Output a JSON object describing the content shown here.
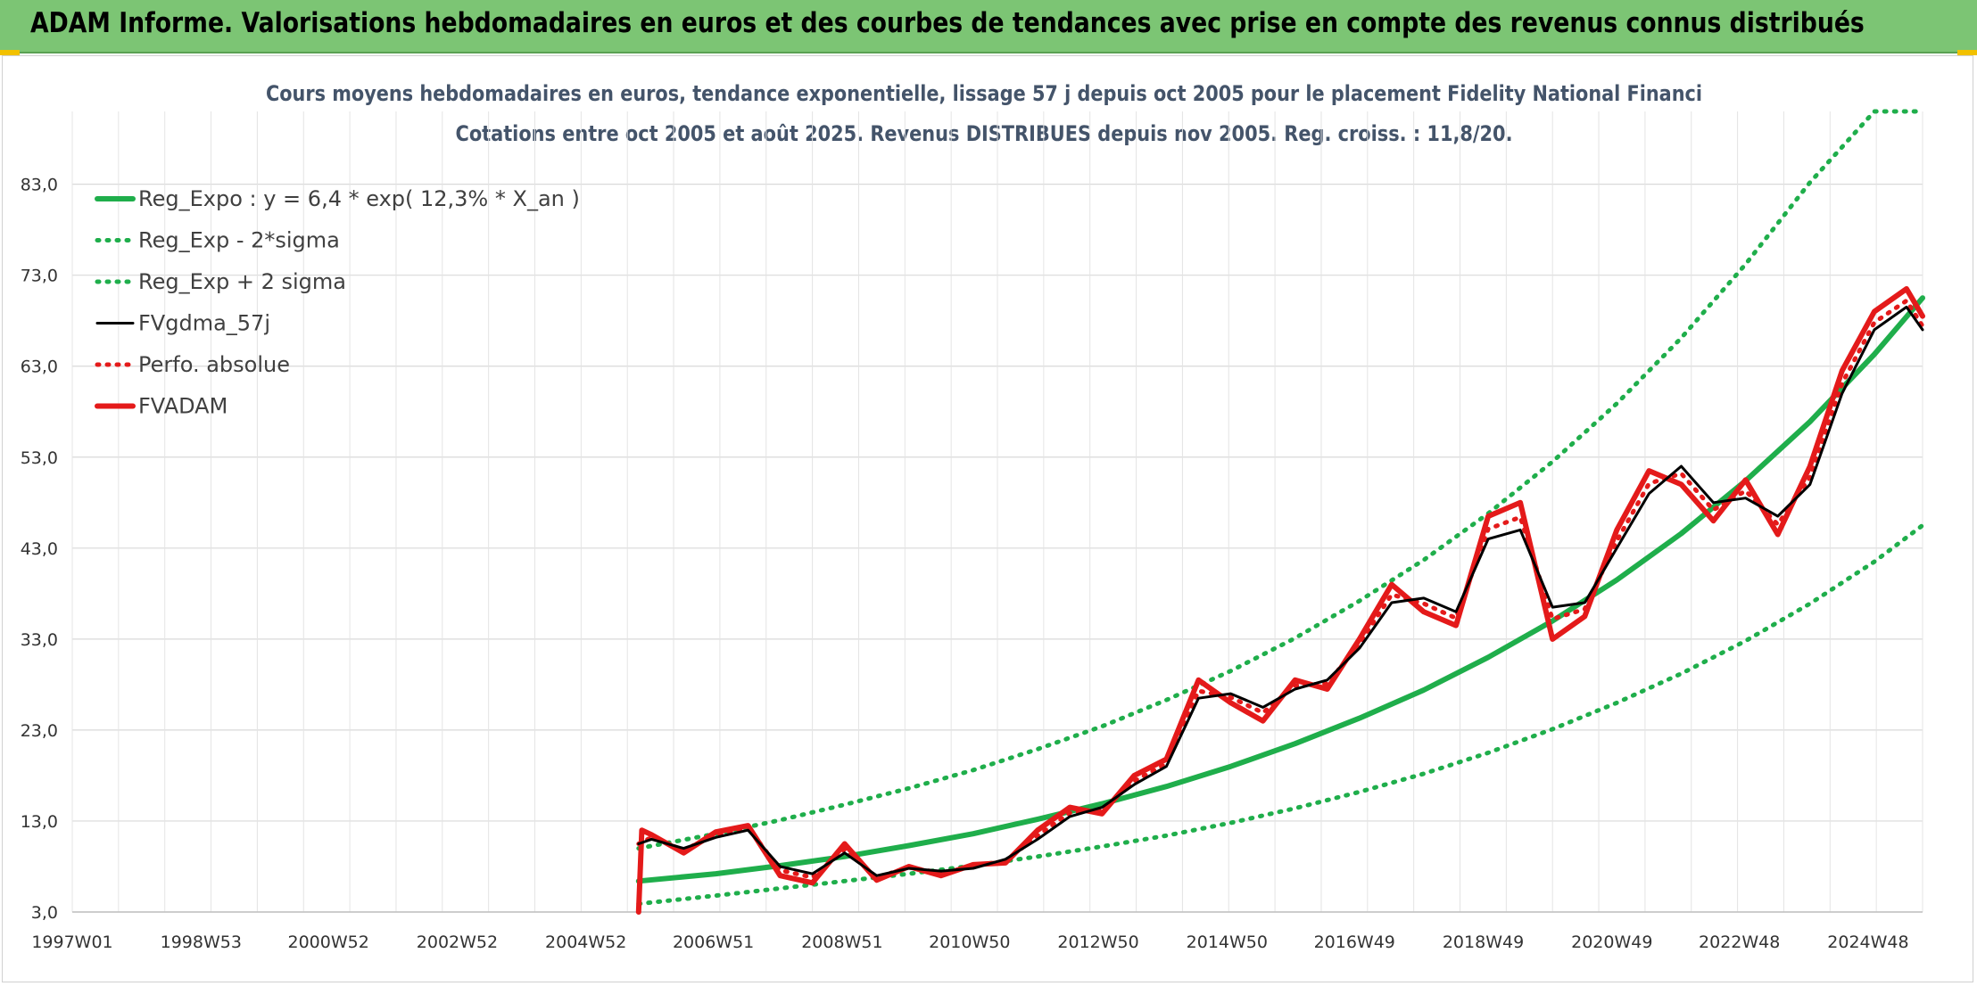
{
  "banner": {
    "title": "ADAM Informe. Valorisations hebdomadaires en euros et des courbes de tendances avec prise en compte des revenus connus distribués",
    "color": "#7cc574"
  },
  "chart_data": {
    "type": "line",
    "title": "Cours moyens hebdomadaires en euros, tendance exponentielle, lissage 57 j depuis oct 2005 pour le placement Fidelity National Financi",
    "subtitle": "Cotations entre oct 2005 et août 2025. Revenus DISTRIBUES depuis nov 2005. Reg. croiss. : 11,8/20.",
    "xlabel": "",
    "ylabel": "",
    "x_range": [
      1997.0,
      2025.75
    ],
    "y_range": [
      3.0,
      91.0
    ],
    "y_ticks": [
      "3,0",
      "13,0",
      "23,0",
      "33,0",
      "43,0",
      "53,0",
      "63,0",
      "73,0",
      "83,0"
    ],
    "x_ticks": [
      "1997W01",
      "1998W53",
      "2000W52",
      "2002W52",
      "2004W52",
      "2006W51",
      "2008W51",
      "2010W50",
      "2012W50",
      "2014W50",
      "2016W49",
      "2018W49",
      "2020W49",
      "2022W48",
      "2024W48"
    ],
    "grid": true,
    "legend_position": "top-left",
    "legend": [
      {
        "label": "Reg_Expo : y = 6,4 * exp( 12,3% *  X_an )",
        "color": "#1fae4b",
        "style": "solid-thick"
      },
      {
        "label": "Reg_Exp - 2*sigma",
        "color": "#1fae4b",
        "style": "dotted"
      },
      {
        "label": "Reg_Exp + 2 sigma",
        "color": "#1fae4b",
        "style": "dotted"
      },
      {
        "label": "FVgdma_57j",
        "color": "#000000",
        "style": "solid"
      },
      {
        "label": "Perfo. absolue",
        "color": "#e41a1a",
        "style": "dotted"
      },
      {
        "label": "FVADAM",
        "color": "#e41a1a",
        "style": "solid-thick"
      }
    ],
    "series": [
      {
        "name": "Reg_Expo : y = 6,4 * exp( 12,3% *  X_an )",
        "color": "#1fae4b",
        "x": [
          2005.8,
          2007,
          2008,
          2009,
          2010,
          2011,
          2012,
          2013,
          2014,
          2015,
          2016,
          2017,
          2018,
          2019,
          2020,
          2021,
          2022,
          2023,
          2024,
          2025,
          2025.75
        ],
        "values": [
          6.4,
          7.2,
          8.1,
          9.1,
          10.3,
          11.6,
          13.2,
          14.9,
          16.8,
          19.0,
          21.5,
          24.3,
          27.4,
          31.0,
          35.0,
          39.5,
          44.6,
          50.4,
          56.9,
          64.3,
          70.5
        ]
      },
      {
        "name": "Reg_Exp - 2*sigma",
        "color": "#1fae4b",
        "x": [
          2005.8,
          2007,
          2008,
          2009,
          2010,
          2011,
          2012,
          2013,
          2014,
          2015,
          2016,
          2017,
          2018,
          2019,
          2020,
          2021,
          2022,
          2023,
          2024,
          2025,
          2025.75
        ],
        "values": [
          3.9,
          4.8,
          5.6,
          6.4,
          7.2,
          8.1,
          9.1,
          10.2,
          11.4,
          12.8,
          14.4,
          16.2,
          18.2,
          20.5,
          23.1,
          26.0,
          29.2,
          32.8,
          36.9,
          41.5,
          45.5
        ]
      },
      {
        "name": "Reg_Exp + 2 sigma",
        "color": "#1fae4b",
        "x": [
          2005.8,
          2007,
          2008,
          2009,
          2010,
          2011,
          2012,
          2013,
          2014,
          2015,
          2016,
          2017,
          2018,
          2019,
          2020,
          2021,
          2022,
          2023,
          2024,
          2025,
          2025.75
        ],
        "values": [
          10.0,
          11.6,
          13.1,
          14.8,
          16.6,
          18.6,
          20.9,
          23.4,
          26.3,
          29.5,
          33.1,
          37.2,
          41.7,
          46.8,
          52.5,
          58.9,
          66.1,
          74.2,
          83.2,
          91.0,
          91.0
        ]
      },
      {
        "name": "FVgdma_57j",
        "color": "#000000",
        "x": [
          2005.8,
          2006.0,
          2006.5,
          2007.0,
          2007.5,
          2008.0,
          2008.5,
          2009.0,
          2009.5,
          2010.0,
          2010.5,
          2011.0,
          2011.5,
          2012.0,
          2012.5,
          2013.0,
          2013.5,
          2014.0,
          2014.5,
          2015.0,
          2015.5,
          2016.0,
          2016.5,
          2017.0,
          2017.5,
          2018.0,
          2018.5,
          2019.0,
          2019.5,
          2020.0,
          2020.5,
          2021.0,
          2021.5,
          2022.0,
          2022.5,
          2023.0,
          2023.5,
          2024.0,
          2024.5,
          2025.0,
          2025.5,
          2025.75
        ],
        "values": [
          10.5,
          11.0,
          10.0,
          11.2,
          12.0,
          8.0,
          7.2,
          9.5,
          7.0,
          7.8,
          7.5,
          7.8,
          8.8,
          11.0,
          13.5,
          14.5,
          17.0,
          19.0,
          26.5,
          27.0,
          25.5,
          27.5,
          28.5,
          32.0,
          37.0,
          37.5,
          36.0,
          44.0,
          45.0,
          36.5,
          37.0,
          43.0,
          49.0,
          52.0,
          48.0,
          48.5,
          46.5,
          50.0,
          60.0,
          67.0,
          69.5,
          67.0
        ]
      },
      {
        "name": "Perfo. absolue",
        "color": "#e41a1a",
        "x": [
          2005.8,
          2006.0,
          2006.5,
          2007.0,
          2007.5,
          2008.0,
          2008.5,
          2009.0,
          2009.5,
          2010.0,
          2010.5,
          2011.0,
          2011.5,
          2012.0,
          2012.5,
          2013.0,
          2013.5,
          2014.0,
          2014.5,
          2015.0,
          2015.5,
          2016.0,
          2016.5,
          2017.0,
          2017.5,
          2018.0,
          2018.5,
          2019.0,
          2019.5,
          2020.0,
          2020.5,
          2021.0,
          2021.5,
          2022.0,
          2022.5,
          2023.0,
          2023.5,
          2024.0,
          2024.5,
          2025.0,
          2025.5,
          2025.75
        ],
        "values": [
          10.5,
          11.2,
          9.8,
          11.5,
          12.3,
          7.6,
          6.8,
          9.9,
          6.8,
          7.9,
          7.3,
          8.0,
          8.6,
          11.4,
          13.9,
          14.2,
          17.4,
          19.3,
          27.3,
          26.6,
          24.9,
          27.9,
          28.1,
          32.5,
          37.9,
          36.9,
          35.3,
          45.1,
          46.4,
          35.2,
          36.3,
          43.8,
          50.1,
          51.2,
          47.2,
          49.3,
          45.6,
          50.8,
          61.1,
          67.8,
          70.2,
          67.4
        ]
      },
      {
        "name": "FVADAM",
        "color": "#e41a1a",
        "x": [
          2005.8,
          2005.85,
          2006.0,
          2006.5,
          2007.0,
          2007.5,
          2008.0,
          2008.5,
          2009.0,
          2009.5,
          2010.0,
          2010.5,
          2011.0,
          2011.5,
          2012.0,
          2012.5,
          2013.0,
          2013.5,
          2014.0,
          2014.5,
          2015.0,
          2015.5,
          2016.0,
          2016.5,
          2017.0,
          2017.5,
          2018.0,
          2018.5,
          2019.0,
          2019.5,
          2020.0,
          2020.5,
          2021.0,
          2021.5,
          2022.0,
          2022.5,
          2023.0,
          2023.5,
          2024.0,
          2024.5,
          2025.0,
          2025.5,
          2025.75
        ],
        "values": [
          3.0,
          12.0,
          11.5,
          9.5,
          11.8,
          12.5,
          7.0,
          6.2,
          10.5,
          6.5,
          8.0,
          7.0,
          8.2,
          8.4,
          12.0,
          14.5,
          13.8,
          18.0,
          19.8,
          28.5,
          26.0,
          24.0,
          28.5,
          27.5,
          33.0,
          39.0,
          36.0,
          34.5,
          46.5,
          48.0,
          33.0,
          35.5,
          45.0,
          51.5,
          50.0,
          46.0,
          50.5,
          44.5,
          52.0,
          62.5,
          69.0,
          71.5,
          68.5
        ]
      }
    ]
  }
}
